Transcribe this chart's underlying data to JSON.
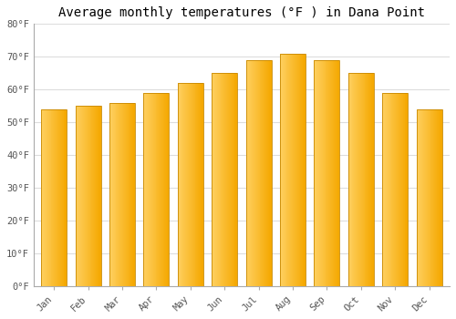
{
  "title": "Average monthly temperatures (°F ) in Dana Point",
  "months": [
    "Jan",
    "Feb",
    "Mar",
    "Apr",
    "May",
    "Jun",
    "Jul",
    "Aug",
    "Sep",
    "Oct",
    "Nov",
    "Dec"
  ],
  "values": [
    54,
    55,
    56,
    59,
    62,
    65,
    69,
    71,
    69,
    65,
    59,
    54
  ],
  "bar_color_main": "#F5A800",
  "bar_color_light": "#FFD060",
  "background_color": "#ffffff",
  "plot_bg_color": "#ffffff",
  "ylim": [
    0,
    80
  ],
  "yticks": [
    0,
    10,
    20,
    30,
    40,
    50,
    60,
    70,
    80
  ],
  "ytick_labels": [
    "0°F",
    "10°F",
    "20°F",
    "30°F",
    "40°F",
    "50°F",
    "60°F",
    "70°F",
    "80°F"
  ],
  "title_fontsize": 10,
  "tick_fontsize": 7.5,
  "grid_color": "#dddddd",
  "bar_edge_color": "#c88800",
  "bar_width": 0.75
}
